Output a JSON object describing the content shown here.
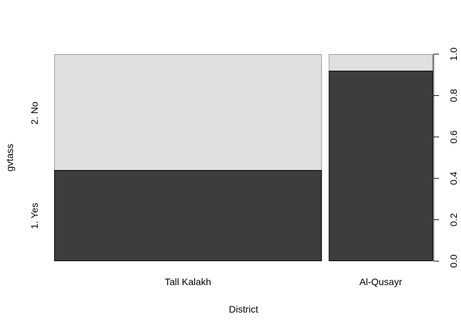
{
  "chart_data": {
    "type": "spineplot",
    "xlabel": "District",
    "ylabel": "gvtass",
    "categories": [
      "Tall Kalakh",
      "Al-Qusayr"
    ],
    "category_proportions": [
      0.72,
      0.28
    ],
    "levels": [
      "1. Yes",
      "2. No"
    ],
    "series": [
      {
        "name": "1. Yes",
        "values": [
          0.44,
          0.92
        ]
      },
      {
        "name": "2. No",
        "values": [
          0.56,
          0.08
        ]
      }
    ],
    "right_axis": {
      "range": [
        0,
        1
      ],
      "ticks": [
        0.0,
        0.2,
        0.4,
        0.6,
        0.8,
        1.0
      ],
      "tick_labels": [
        "0.0",
        "0.2",
        "0.4",
        "0.6",
        "0.8",
        "1.0"
      ]
    },
    "colors": {
      "level_1": "#3d3d3d",
      "level_2": "#e0e0e0",
      "stroke": "#000000",
      "outline": "#9e9e9e"
    },
    "grid": false,
    "legend": "none"
  }
}
